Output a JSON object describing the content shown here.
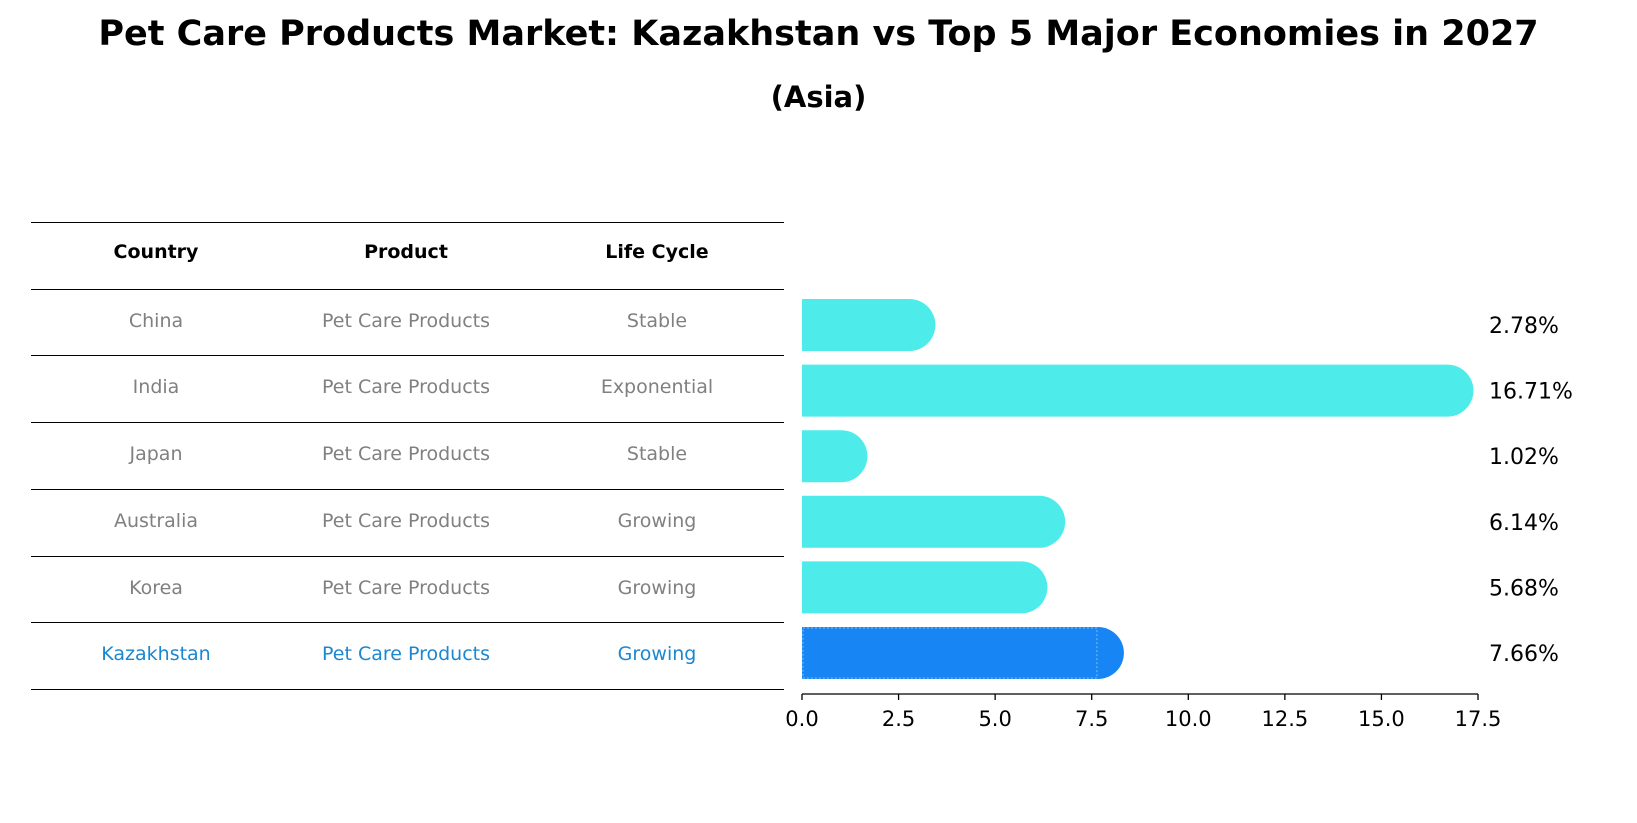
{
  "title": "Pet Care Products Market: Kazakhstan vs Top 5 Major Economies in 2027",
  "subtitle": "(Asia)",
  "table": {
    "headers": [
      "Country",
      "Product",
      "Life Cycle"
    ],
    "rows": [
      {
        "country": "China",
        "product": "Pet Care Products",
        "life_cycle": "Stable"
      },
      {
        "country": "India",
        "product": "Pet Care Products",
        "life_cycle": "Exponential"
      },
      {
        "country": "Japan",
        "product": "Pet Care Products",
        "life_cycle": "Stable"
      },
      {
        "country": "Australia",
        "product": "Pet Care Products",
        "life_cycle": "Growing"
      },
      {
        "country": "Korea",
        "product": "Pet Care Products",
        "life_cycle": "Growing"
      },
      {
        "country": "Kazakhstan",
        "product": "Pet Care Products",
        "life_cycle": "Growing"
      }
    ]
  },
  "chart_data": {
    "type": "bar",
    "orientation": "horizontal",
    "categories": [
      "China",
      "India",
      "Japan",
      "Australia",
      "Korea",
      "Kazakhstan"
    ],
    "values": [
      2.78,
      16.71,
      1.02,
      6.14,
      5.68,
      7.66
    ],
    "value_labels": [
      "2.78%",
      "16.71%",
      "1.02%",
      "6.14%",
      "5.68%",
      "7.66%"
    ],
    "highlight": "Kazakhstan",
    "xlim": [
      0,
      17.5
    ],
    "xticks": [
      0.0,
      2.5,
      5.0,
      7.5,
      10.0,
      12.5,
      15.0,
      17.5
    ],
    "xtick_labels": [
      "0.0",
      "2.5",
      "5.0",
      "7.5",
      "10.0",
      "12.5",
      "15.0",
      "17.5"
    ],
    "colors": {
      "default": "#4deceb",
      "highlight": "#1786f4"
    }
  }
}
